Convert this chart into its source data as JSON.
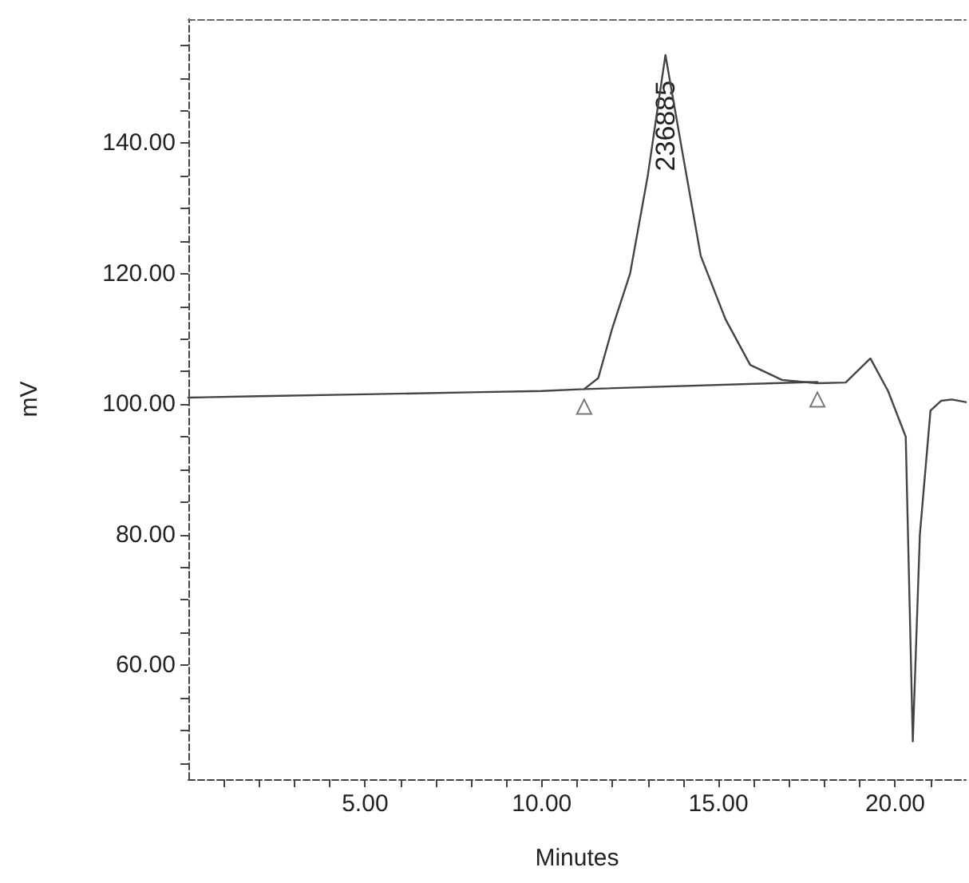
{
  "chart_data": {
    "type": "line",
    "xlabel": "Minutes",
    "ylabel": "mV",
    "xlim": [
      0,
      22
    ],
    "ylim": [
      42.5,
      159
    ],
    "xticks": [
      {
        "value": 1,
        "label": null
      },
      {
        "value": 2,
        "label": null
      },
      {
        "value": 3,
        "label": null
      },
      {
        "value": 4,
        "label": null
      },
      {
        "value": 5,
        "label": "5.00"
      },
      {
        "value": 6,
        "label": null
      },
      {
        "value": 7,
        "label": null
      },
      {
        "value": 8,
        "label": null
      },
      {
        "value": 9,
        "label": null
      },
      {
        "value": 10,
        "label": "10.00"
      },
      {
        "value": 11,
        "label": null
      },
      {
        "value": 12,
        "label": null
      },
      {
        "value": 13,
        "label": null
      },
      {
        "value": 14,
        "label": null
      },
      {
        "value": 15,
        "label": "15.00"
      },
      {
        "value": 16,
        "label": null
      },
      {
        "value": 17,
        "label": null
      },
      {
        "value": 18,
        "label": null
      },
      {
        "value": 19,
        "label": null
      },
      {
        "value": 20,
        "label": "20.00"
      },
      {
        "value": 21,
        "label": null
      }
    ],
    "yticks": [
      {
        "value": 45,
        "label": null
      },
      {
        "value": 50,
        "label": null
      },
      {
        "value": 55,
        "label": null
      },
      {
        "value": 60,
        "label": "60.00"
      },
      {
        "value": 65,
        "label": null
      },
      {
        "value": 70,
        "label": null
      },
      {
        "value": 75,
        "label": null
      },
      {
        "value": 80,
        "label": "80.00"
      },
      {
        "value": 85,
        "label": null
      },
      {
        "value": 90,
        "label": null
      },
      {
        "value": 95,
        "label": null
      },
      {
        "value": 100,
        "label": "100.00"
      },
      {
        "value": 105,
        "label": null
      },
      {
        "value": 110,
        "label": null
      },
      {
        "value": 115,
        "label": null
      },
      {
        "value": 120,
        "label": "120.00"
      },
      {
        "value": 125,
        "label": null
      },
      {
        "value": 130,
        "label": null
      },
      {
        "value": 135,
        "label": null
      },
      {
        "value": 140,
        "label": "140.00"
      },
      {
        "value": 145,
        "label": null
      },
      {
        "value": 150,
        "label": null
      },
      {
        "value": 155,
        "label": null
      }
    ],
    "grid": false,
    "line_style": "solid",
    "series": [
      {
        "color": "#444444",
        "marker": "none",
        "x": [
          0,
          2,
          5,
          8,
          10,
          11.2,
          11.6,
          12.0,
          12.5,
          13.0,
          13.5,
          14.0,
          14.5,
          15.2,
          15.9,
          16.8,
          17.8,
          18.6,
          19.3,
          19.8,
          20.3,
          20.5,
          20.7,
          21.0,
          21.3,
          21.6,
          22
        ],
        "values": [
          101,
          101.2,
          101.5,
          101.8,
          102,
          102.3,
          104,
          111.7,
          120,
          135,
          153.5,
          138,
          122.7,
          113,
          106,
          103.7,
          103.2,
          103.3,
          107,
          102,
          95,
          48.3,
          80,
          99,
          100.5,
          100.7,
          100.3
        ]
      },
      {
        "color": "#444444",
        "marker": "none",
        "x": [
          11.2,
          17.8
        ],
        "values": [
          102.3,
          103.4
        ]
      },
      {
        "type": "scatter",
        "color": "#555555",
        "marker": "triangle",
        "x": [
          11.2,
          17.8
        ],
        "values": [
          99.6,
          100.7
        ]
      }
    ],
    "annotations": [
      {
        "text": "236885",
        "x": 13.5,
        "y": 153.5
      }
    ]
  }
}
